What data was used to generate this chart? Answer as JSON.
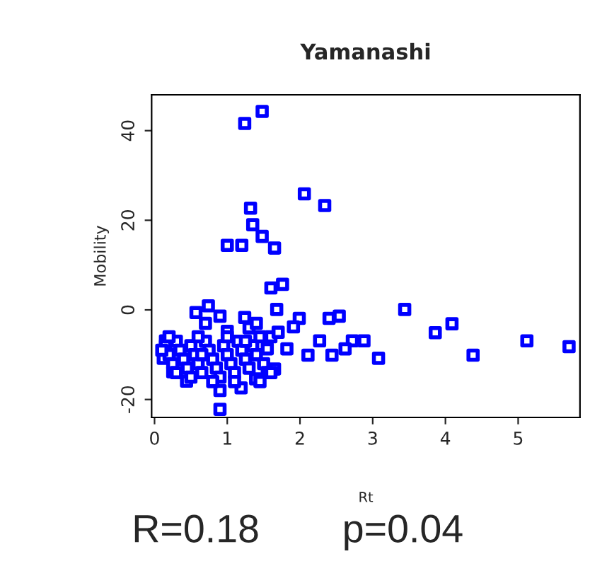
{
  "chart_data": {
    "type": "scatter",
    "title": "Yamanashi",
    "xlabel": "Rt",
    "ylabel": "Mobility",
    "annotations": [
      "R=0.18",
      "p=0.04"
    ],
    "xlim": [
      -0.04,
      5.85
    ],
    "ylim": [
      -24,
      48
    ],
    "xticks": [
      0,
      1,
      2,
      3,
      4,
      5
    ],
    "yticks": [
      -20,
      0,
      20,
      40
    ],
    "marker": "square",
    "grid": false,
    "legend": false,
    "series": [
      {
        "color": "#0000ff",
        "x": [
          1.48,
          1.24,
          2.06,
          2.34,
          1.32,
          1.35,
          1.48,
          1.65,
          1.0,
          1.2,
          1.76,
          1.6,
          3.44,
          4.09,
          3.86,
          5.12,
          5.7,
          4.38,
          3.08,
          2.88,
          2.72,
          2.62,
          2.44,
          2.27,
          2.11,
          2.54,
          2.4,
          1.99,
          1.68,
          1.91,
          1.82,
          1.55,
          1.24,
          1.0,
          0.9,
          0.74,
          0.57,
          1.65,
          1.39,
          1.19,
          0.9,
          0.9,
          0.44,
          0.25,
          0.15,
          0.12,
          0.15,
          0.2,
          0.25,
          0.3,
          0.35,
          0.4,
          0.45,
          0.5,
          0.55,
          0.6,
          0.65,
          0.7,
          0.75,
          0.8,
          0.85,
          0.9,
          0.95,
          1.0,
          1.05,
          1.1,
          1.15,
          1.2,
          1.25,
          1.3,
          1.35,
          1.4,
          1.45,
          1.5,
          1.55,
          1.6,
          0.2,
          0.6,
          1.0,
          0.5,
          0.8,
          1.1,
          1.45,
          1.6,
          0.7,
          1.3,
          1.4,
          1.7,
          0.3,
          0.1,
          0.65,
          1.25
        ],
        "values": [
          44.3,
          41.6,
          25.9,
          23.3,
          22.7,
          19.0,
          16.4,
          13.8,
          14.4,
          14.4,
          5.7,
          4.9,
          0.1,
          -3.1,
          -5.1,
          -6.9,
          -8.2,
          -10.1,
          -10.8,
          -6.9,
          -6.9,
          -8.7,
          -10.1,
          -6.9,
          -10.1,
          -1.4,
          -1.9,
          -1.9,
          0.1,
          -3.8,
          -8.7,
          -8.7,
          -1.7,
          -4.8,
          -1.4,
          0.9,
          -0.6,
          -13.2,
          -15.4,
          -17.4,
          -18.0,
          -22.2,
          -15.9,
          -13.8,
          -6.9,
          -10.8,
          -8,
          -10,
          -12,
          -7,
          -9,
          -11,
          -13,
          -8,
          -10,
          -12,
          -14,
          -7,
          -9,
          -11,
          -13,
          -15,
          -8,
          -10,
          -12,
          -14,
          -7,
          -9,
          -11,
          -13,
          -8,
          -10,
          -6,
          -12,
          -14,
          -6,
          -6,
          -6,
          -6,
          -15,
          -16,
          -16,
          -16,
          -14,
          -3,
          -4,
          -3,
          -5,
          -14,
          -9,
          -10,
          -7
        ]
      }
    ]
  }
}
